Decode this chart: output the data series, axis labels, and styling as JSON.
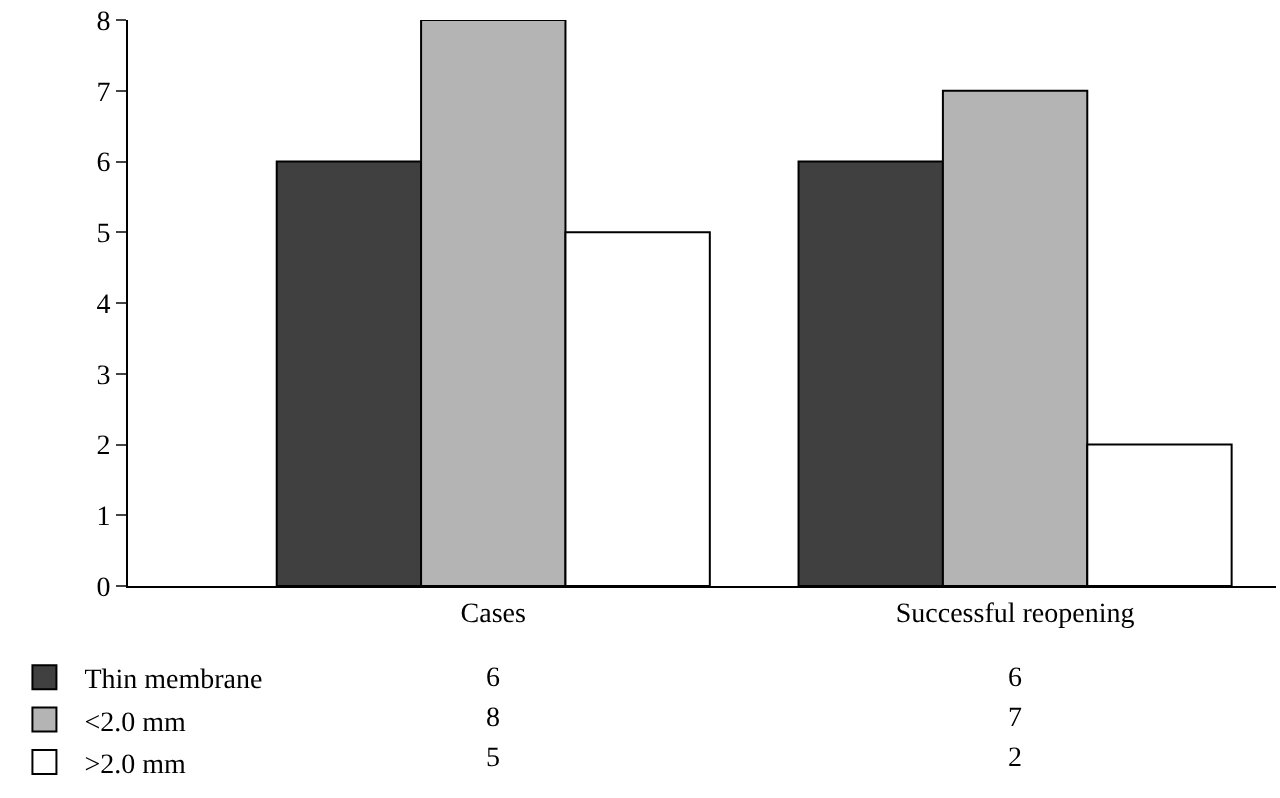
{
  "chart_data": {
    "type": "bar",
    "categories": [
      "Cases",
      "Successful reopening"
    ],
    "series": [
      {
        "name": "Thin membrane",
        "color": "#404040",
        "values": [
          6,
          6
        ]
      },
      {
        "name": "<2.0 mm",
        "color": "#b4b4b4",
        "values": [
          8,
          7
        ]
      },
      {
        "name": ">2.0 mm",
        "color": "#ffffff",
        "values": [
          5,
          2
        ]
      }
    ],
    "ylim": [
      0,
      8
    ],
    "yticks": [
      0,
      1,
      2,
      3,
      4,
      5,
      6,
      7,
      8
    ],
    "grid": false,
    "legend": "bottom left",
    "data_labels": true
  }
}
